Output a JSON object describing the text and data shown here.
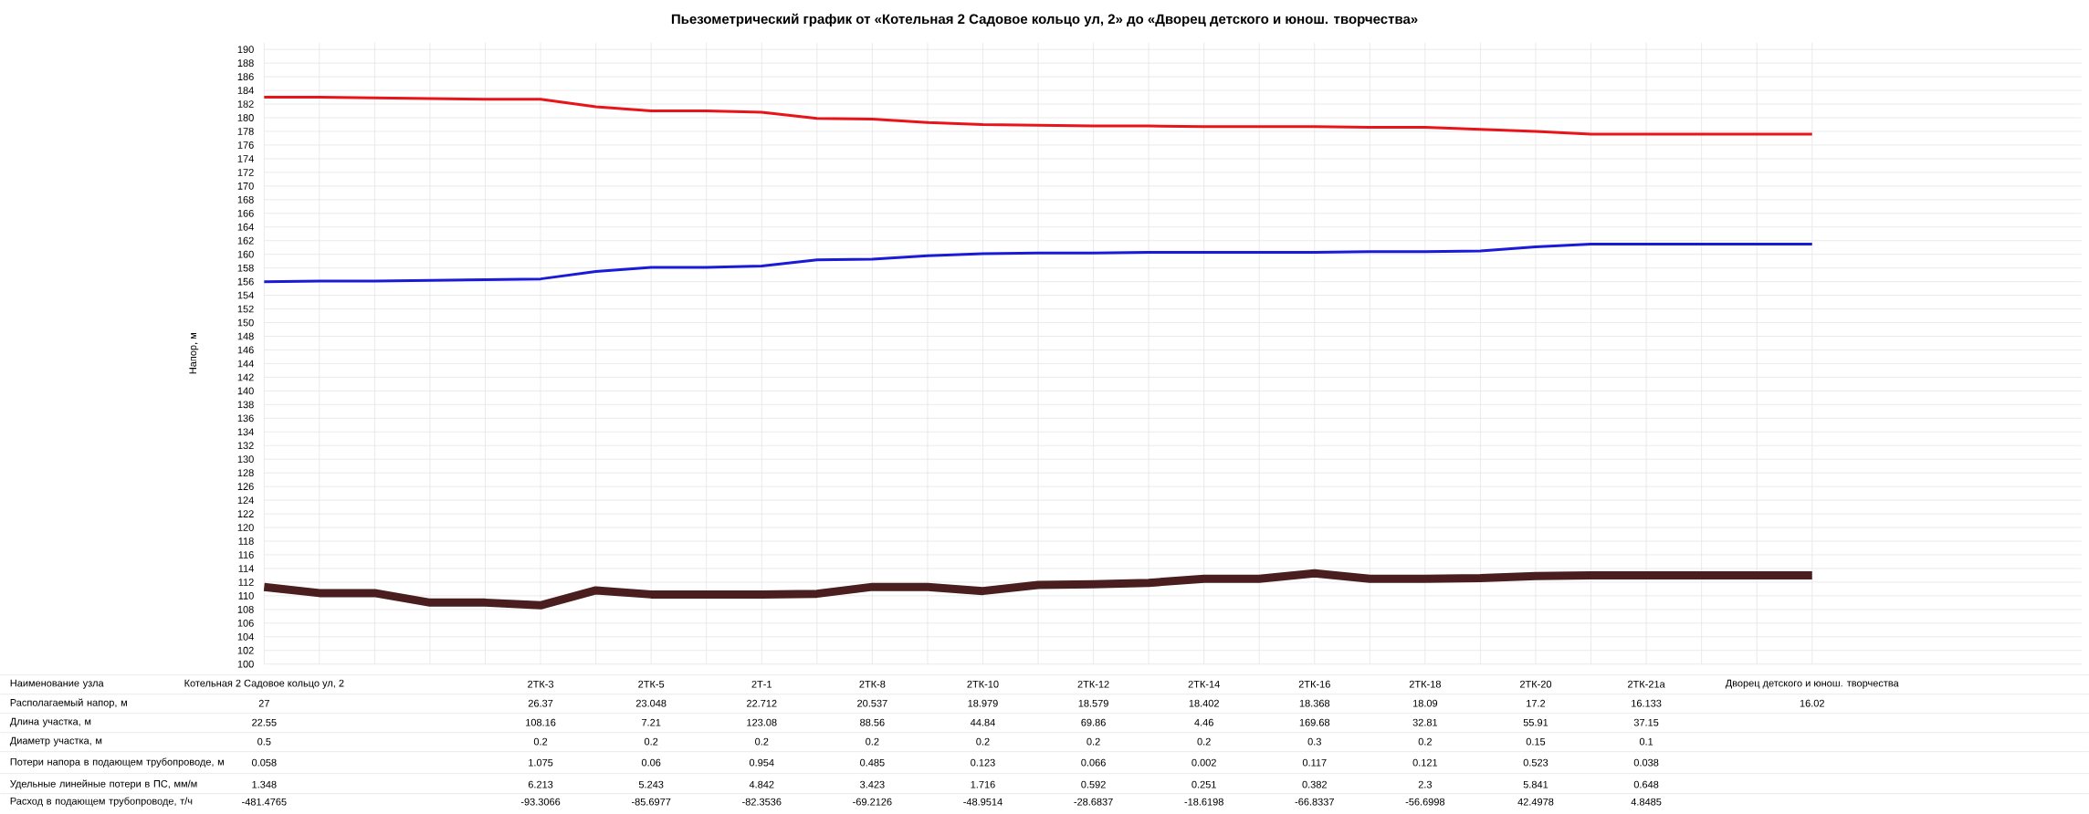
{
  "chart_data": {
    "type": "line",
    "title": "Пьезометрический график от «Котельная 2 Садовое кольцо ул, 2» до «Дворец детского и юнош. творчества»",
    "ylabel": "Напор, м",
    "categories": [
      "Котельная 2 Садовое кольцо ул, 2",
      null,
      null,
      null,
      null,
      "2ТК-3",
      null,
      "2ТК-5",
      null,
      "2Т-1",
      null,
      "2ТК-8",
      null,
      "2ТК-10",
      null,
      "2ТК-12",
      null,
      "2ТК-14",
      null,
      "2ТК-16",
      null,
      "2ТК-18",
      null,
      "2ТК-20",
      null,
      "2ТК-21а",
      null,
      null,
      "Дворец детского и юнош. творчества"
    ],
    "series": [
      {
        "color": "#e8141a",
        "values": [
          183.0,
          183.0,
          182.9,
          182.8,
          182.7,
          182.7,
          181.6,
          181.0,
          181.0,
          180.8,
          179.9,
          179.8,
          179.3,
          179.0,
          178.9,
          178.8,
          178.8,
          178.7,
          178.7,
          178.7,
          178.6,
          178.6,
          178.3,
          178.0,
          177.6,
          177.6,
          177.6,
          177.6,
          177.6
        ]
      },
      {
        "color": "#1a1ad8",
        "values": [
          156.0,
          156.1,
          156.1,
          156.2,
          156.3,
          156.4,
          157.5,
          158.1,
          158.1,
          158.3,
          159.2,
          159.3,
          159.8,
          160.1,
          160.2,
          160.2,
          160.3,
          160.3,
          160.3,
          160.3,
          160.4,
          160.4,
          160.5,
          161.1,
          161.5,
          161.5,
          161.5,
          161.5,
          161.5
        ]
      },
      {
        "color": "#4a1e1e",
        "values": [
          111.3,
          110.4,
          110.4,
          109.0,
          109.0,
          108.6,
          110.8,
          110.2,
          110.2,
          110.2,
          110.3,
          111.3,
          111.3,
          110.7,
          111.6,
          111.7,
          111.9,
          112.5,
          112.5,
          113.3,
          112.5,
          112.5,
          112.6,
          112.9,
          113.0,
          113.0,
          113.0,
          113.0,
          113.0
        ]
      }
    ],
    "ylim": [
      100,
      191
    ],
    "yticks": [
      100,
      102,
      104,
      106,
      108,
      110,
      112,
      114,
      116,
      118,
      120,
      122,
      124,
      126,
      128,
      130,
      132,
      134,
      136,
      138,
      140,
      142,
      144,
      146,
      148,
      150,
      152,
      154,
      156,
      158,
      160,
      162,
      164,
      166,
      168,
      170,
      172,
      174,
      176,
      178,
      180,
      182,
      184,
      186,
      188,
      190
    ],
    "grid": true,
    "annotations": [
      "Наименование узла",
      "Располагаемый напор, м",
      "27",
      "26.37",
      "23.048",
      "22.712",
      "20.537",
      "18.979",
      "18.579",
      "18.402",
      "18.368",
      "18.09",
      "17.2",
      "16.133",
      "16.02",
      "Длина участка, м",
      "22.55",
      "108.16",
      "7.21",
      "123.08",
      "88.56",
      "44.84",
      "69.86",
      "4.46",
      "169.68",
      "32.81",
      "55.91",
      "37.15",
      "Диаметр участка, м",
      "0.5",
      "0.2",
      "0.2",
      "0.2",
      "0.2",
      "0.2",
      "0.2",
      "0.2",
      "0.3",
      "0.2",
      "0.15",
      "0.1",
      "Потери напора в подающем трубопроводе, м",
      "0.058",
      "1.075",
      "0.06",
      "0.954",
      "0.485",
      "0.123",
      "0.066",
      "0.002",
      "0.117",
      "0.121",
      "0.523",
      "0.038",
      "Удельные линейные потери в ПС, мм/м",
      "1.348",
      "6.213",
      "5.243",
      "4.842",
      "3.423",
      "1.716",
      "0.592",
      "0.251",
      "0.382",
      "2.3",
      "5.841",
      "0.648",
      "Расход в подающем трубопроводе, т/ч",
      "-481.4765",
      "-93.3066",
      "-85.6977",
      "-82.3536",
      "-69.2126",
      "-48.9514",
      "-28.6837",
      "-18.6198",
      "-66.8337",
      "-56.6998",
      "42.4978",
      "4.8485"
    ]
  }
}
